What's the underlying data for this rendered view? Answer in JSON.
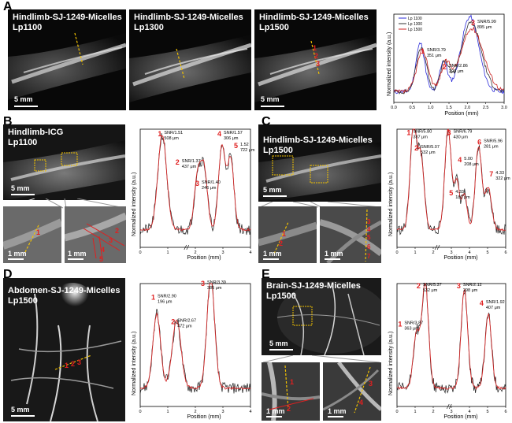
{
  "panels": {
    "A": {
      "letter": "A",
      "images": [
        {
          "title1": "Hindlimb-SJ-1249-Micelles",
          "title2": "Lp1100",
          "scale": "5 mm"
        },
        {
          "title1": "Hindlimb-SJ-1249-Micelles",
          "title2": "Lp1300",
          "scale": ""
        },
        {
          "title1": "Hindlimb-SJ-1249-Micelles",
          "title2": "Lp1500",
          "scale": "5 mm"
        }
      ],
      "chart": {
        "type": "line",
        "ylabel": "Normalized intensity (a.u.)",
        "xlabel": "Position (mm)",
        "xticks": [
          "0.0",
          "0.5",
          "1.0",
          "1.5",
          "2.0",
          "2.5",
          "3.0"
        ],
        "xlim": [
          0,
          3.3
        ],
        "legend": [
          "Lp 1100",
          "Lp 1300",
          "Lp 1500"
        ],
        "series_colors": [
          "#2b2bd9",
          "#333333",
          "#cc2222"
        ],
        "annotations": [
          {
            "num": "1",
            "text": "SNR/3.79",
            "text2": "351 μm"
          },
          {
            "num": "2",
            "text": "SNR/2.86",
            "text2": "209 μm"
          },
          {
            "num": "3",
            "text": "SNR/5.99",
            "text2": "895 μm"
          }
        ]
      }
    },
    "B": {
      "letter": "B",
      "image": {
        "title1": "Hindlimb-ICG",
        "title2": "Lp1100",
        "scale": "5 mm"
      },
      "insets": [
        {
          "scale": "1 mm",
          "marks": [
            "1"
          ]
        },
        {
          "scale": "1 mm",
          "marks": [
            "2",
            "3",
            "4",
            "5"
          ]
        }
      ],
      "chart": {
        "type": "line",
        "ylabel": "Normalized intensity (a.u.)",
        "xlabel": "Position (mm)",
        "xticks": [
          "0",
          "1",
          "2",
          "3",
          "4"
        ],
        "annotations": [
          {
            "num": "1",
            "text": "SNR/1.51",
            "text2": "508 μm"
          },
          {
            "num": "2",
            "text": "SNR/1.37",
            "text2": "437 μm"
          },
          {
            "num": "3",
            "text": "SNR/1.40",
            "text2": "246 μm"
          },
          {
            "num": "4",
            "text": "SNR/1.57",
            "text2": "306 μm"
          },
          {
            "num": "5",
            "text": "1.52",
            "text2": "722 μm"
          }
        ]
      }
    },
    "C": {
      "letter": "C",
      "image": {
        "title1": "Hindlimb-SJ-1249-Micelles",
        "title2": "Lp1500",
        "scale": "5 mm"
      },
      "insets": [
        {
          "scale": "1 mm",
          "marks": [
            "1",
            "2"
          ]
        },
        {
          "scale": "1 mm",
          "marks": [
            "3",
            "4",
            "5",
            "6",
            "7"
          ]
        }
      ],
      "chart": {
        "type": "line",
        "ylabel": "Normalized intensity (a.u.)",
        "xlabel": "Position (mm)",
        "xticks": [
          "0",
          "1",
          "2",
          "3",
          "4",
          "5",
          "6"
        ],
        "annotations": [
          {
            "num": "1",
            "text": "SNR/5.80",
            "text2": "387 μm"
          },
          {
            "num": "2",
            "text": "SNR/5.07",
            "text2": "532 μm"
          },
          {
            "num": "3",
            "text": "SNR/6.79",
            "text2": "430 μm"
          },
          {
            "num": "4",
            "text": "5.00",
            "text2": "208 μm"
          },
          {
            "num": "5",
            "text": "4.33",
            "text2": "180 μm"
          },
          {
            "num": "6",
            "text": "SNR/5.96",
            "text2": "281 μm"
          },
          {
            "num": "7",
            "text": "4.33",
            "text2": "322 μm"
          }
        ]
      }
    },
    "D": {
      "letter": "D",
      "image": {
        "title1": "Abdomen-SJ-1249-Micelles",
        "title2": "Lp1500",
        "scale": "5 mm",
        "marks": [
          "1",
          "2",
          "3"
        ]
      },
      "chart": {
        "type": "line",
        "ylabel": "Normalized intensity (a.u.)",
        "xlabel": "Position (mm)",
        "xticks": [
          "0",
          "1",
          "2",
          "3",
          "4"
        ],
        "annotations": [
          {
            "num": "1",
            "text": "SNR/2.90",
            "text2": "196 μm"
          },
          {
            "num": "2",
            "text": "SNR/2.67",
            "text2": "472 μm"
          },
          {
            "num": "3",
            "text": "SNR/3.39",
            "text2": "385 μm"
          }
        ]
      }
    },
    "E": {
      "letter": "E",
      "image": {
        "title1": "Brain-SJ-1249-Micelles",
        "title2": "Lp1500",
        "scale": "5 mm"
      },
      "insets": [
        {
          "scale": "1 mm",
          "marks": [
            "1",
            "2"
          ]
        },
        {
          "scale": "1 mm",
          "marks": [
            "3",
            "4"
          ]
        }
      ],
      "chart": {
        "type": "line",
        "ylabel": "Normalized intensity (a.u.)",
        "xlabel": "Position (mm)",
        "xticks": [
          "0",
          "1",
          "2",
          "3",
          "4",
          "5",
          "6"
        ],
        "annotations": [
          {
            "num": "1",
            "text": "SNR/3.87",
            "text2": "363 μm"
          },
          {
            "num": "2",
            "text": "SNR/5.37",
            "text2": "532 μm"
          },
          {
            "num": "3",
            "text": "SNR/2.12",
            "text2": "298 μm"
          },
          {
            "num": "4",
            "text": "SNR/1.92",
            "text2": "407 μm"
          }
        ]
      }
    }
  },
  "colors": {
    "accent_red": "#e02020",
    "marker_yellow": "#f2c200",
    "profile_red": "#d42a2a",
    "profile_black": "#1a1a1a"
  }
}
